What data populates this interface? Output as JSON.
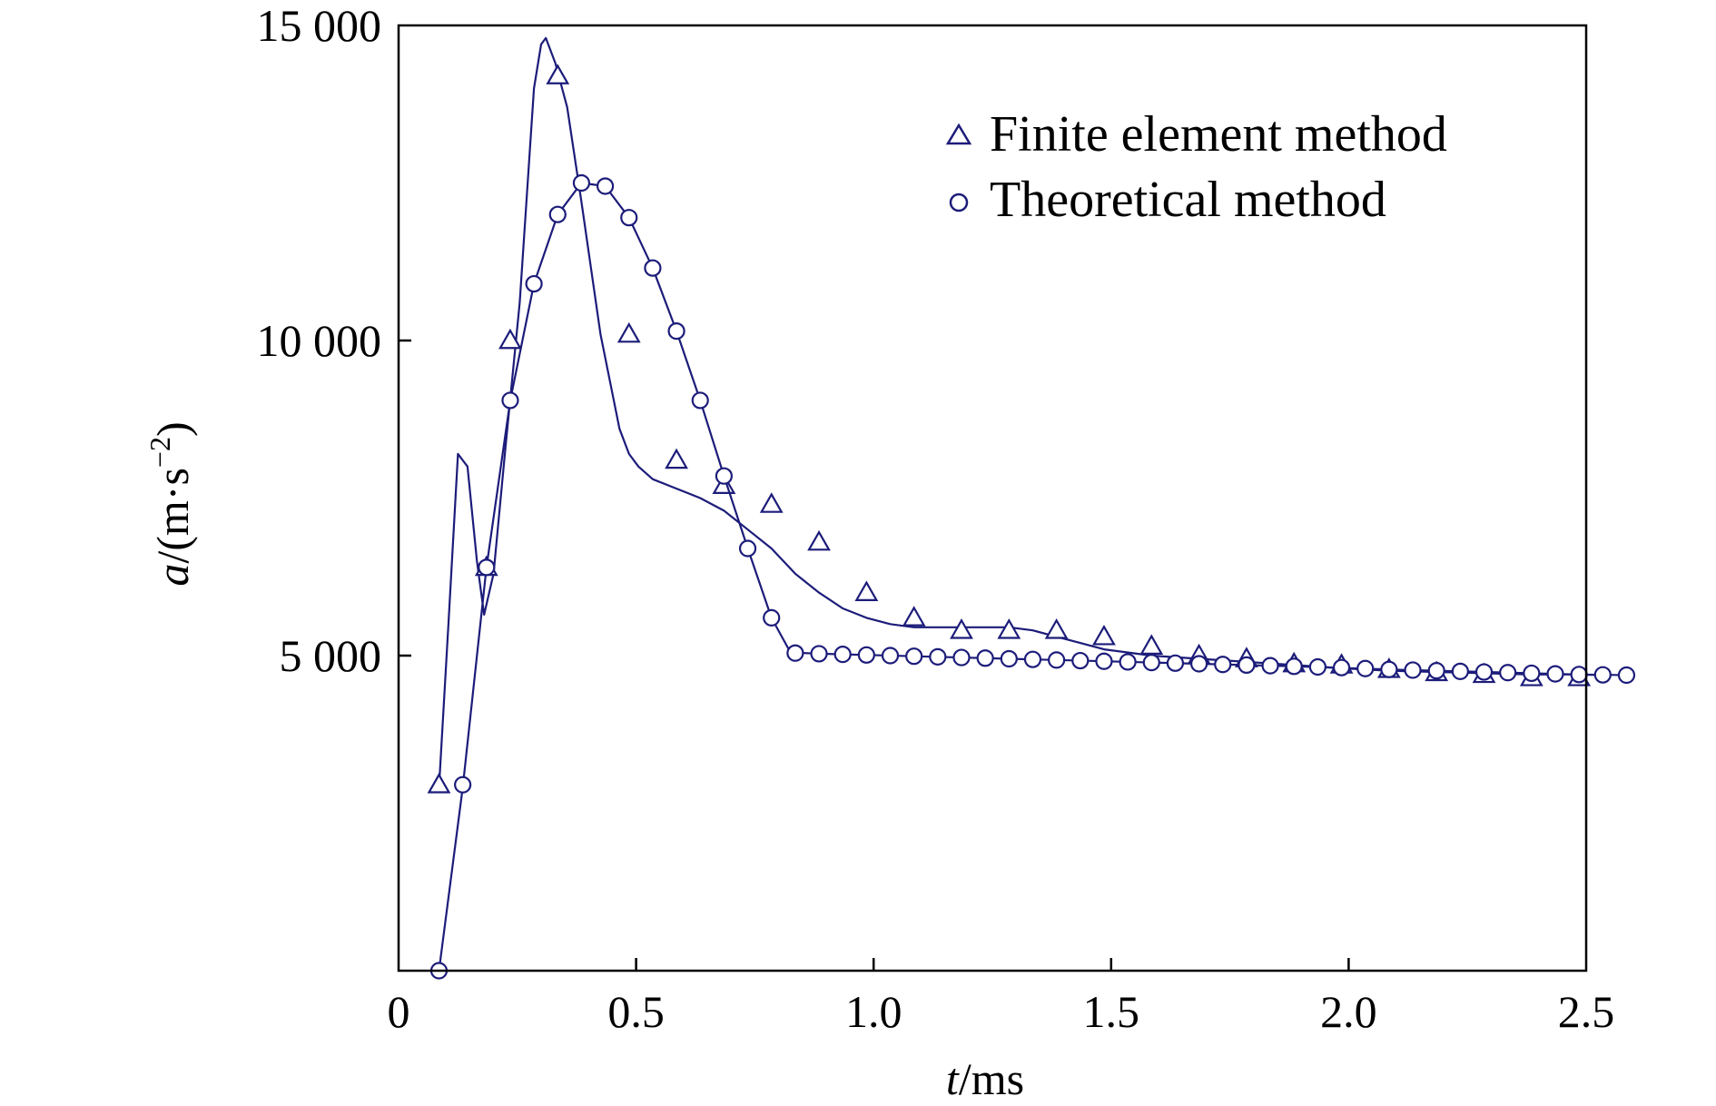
{
  "chart_data": {
    "type": "line",
    "xlabel": {
      "var": "t",
      "unit": "/ms"
    },
    "ylabel": {
      "var": "a",
      "unit_open": "/(m·s",
      "exp": "−2",
      "unit_close": ")"
    },
    "xlim": [
      0,
      2.5
    ],
    "ylim": [
      0,
      15000
    ],
    "x_data_offset": 0.085,
    "xticks": [
      0,
      0.5,
      1.0,
      1.5,
      2.0,
      2.5
    ],
    "xtick_labels": [
      "0",
      "0.5",
      "1.0",
      "1.5",
      "2.0",
      "2.5"
    ],
    "yticks": [
      5000,
      10000,
      15000
    ],
    "ytick_labels": [
      "5 000",
      "10 000",
      "15 000"
    ],
    "grid": false,
    "legend_position": "top-right",
    "line_color": "#1c1c7a",
    "series": [
      {
        "name": "Finite element method",
        "marker": "triangle",
        "line": [
          [
            0.0,
            2900
          ],
          [
            0.02,
            5500
          ],
          [
            0.04,
            8200
          ],
          [
            0.06,
            8000
          ],
          [
            0.08,
            6500
          ],
          [
            0.095,
            5650
          ],
          [
            0.115,
            6300
          ],
          [
            0.14,
            8300
          ],
          [
            0.17,
            10600
          ],
          [
            0.2,
            14000
          ],
          [
            0.215,
            14700
          ],
          [
            0.225,
            14800
          ],
          [
            0.245,
            14400
          ],
          [
            0.27,
            13700
          ],
          [
            0.3,
            12200
          ],
          [
            0.34,
            10100
          ],
          [
            0.38,
            8600
          ],
          [
            0.4,
            8200
          ],
          [
            0.42,
            8000
          ],
          [
            0.45,
            7800
          ],
          [
            0.5,
            7650
          ],
          [
            0.55,
            7500
          ],
          [
            0.6,
            7300
          ],
          [
            0.65,
            7000
          ],
          [
            0.7,
            6700
          ],
          [
            0.75,
            6300
          ],
          [
            0.8,
            6000
          ],
          [
            0.85,
            5750
          ],
          [
            0.9,
            5600
          ],
          [
            0.95,
            5500
          ],
          [
            1.0,
            5450
          ],
          [
            1.1,
            5450
          ],
          [
            1.2,
            5450
          ],
          [
            1.25,
            5400
          ],
          [
            1.3,
            5300
          ],
          [
            1.35,
            5200
          ],
          [
            1.4,
            5100
          ],
          [
            1.5,
            5000
          ],
          [
            1.6,
            4950
          ],
          [
            1.7,
            4900
          ],
          [
            1.8,
            4850
          ],
          [
            1.9,
            4800
          ],
          [
            2.0,
            4760
          ],
          [
            2.1,
            4740
          ],
          [
            2.2,
            4720
          ],
          [
            2.3,
            4700
          ],
          [
            2.4,
            4700
          ],
          [
            2.45,
            4690
          ]
        ],
        "points": [
          [
            0.0,
            2950
          ],
          [
            0.1,
            6400
          ],
          [
            0.15,
            10000
          ],
          [
            0.25,
            14200
          ],
          [
            0.4,
            10100
          ],
          [
            0.5,
            8100
          ],
          [
            0.6,
            7700
          ],
          [
            0.7,
            7400
          ],
          [
            0.8,
            6800
          ],
          [
            0.9,
            6000
          ],
          [
            1.0,
            5600
          ],
          [
            1.1,
            5400
          ],
          [
            1.2,
            5400
          ],
          [
            1.3,
            5400
          ],
          [
            1.4,
            5300
          ],
          [
            1.5,
            5150
          ],
          [
            1.6,
            5000
          ],
          [
            1.7,
            4950
          ],
          [
            1.8,
            4870
          ],
          [
            1.9,
            4850
          ],
          [
            2.0,
            4780
          ],
          [
            2.1,
            4730
          ],
          [
            2.2,
            4700
          ],
          [
            2.3,
            4650
          ],
          [
            2.4,
            4650
          ]
        ]
      },
      {
        "name": "Theoretical method",
        "marker": "circle",
        "line": [
          [
            0.0,
            0
          ],
          [
            0.05,
            2900
          ],
          [
            0.1,
            6400
          ],
          [
            0.15,
            9050
          ],
          [
            0.2,
            10900
          ],
          [
            0.25,
            12000
          ],
          [
            0.3,
            12500
          ],
          [
            0.35,
            12450
          ],
          [
            0.4,
            11950
          ],
          [
            0.45,
            11150
          ],
          [
            0.5,
            10150
          ],
          [
            0.55,
            9050
          ],
          [
            0.6,
            7850
          ],
          [
            0.65,
            6700
          ],
          [
            0.7,
            5600
          ],
          [
            0.74,
            5050
          ],
          [
            0.8,
            5030
          ],
          [
            1.0,
            4990
          ],
          [
            1.2,
            4950
          ],
          [
            1.4,
            4910
          ],
          [
            1.6,
            4870
          ],
          [
            1.8,
            4830
          ],
          [
            2.0,
            4780
          ],
          [
            2.2,
            4740
          ],
          [
            2.4,
            4700
          ],
          [
            2.5,
            4690
          ]
        ],
        "points": [
          [
            0.0,
            0
          ],
          [
            0.05,
            2950
          ],
          [
            0.1,
            6400
          ],
          [
            0.15,
            9050
          ],
          [
            0.2,
            10900
          ],
          [
            0.25,
            12000
          ],
          [
            0.3,
            12500
          ],
          [
            0.35,
            12450
          ],
          [
            0.4,
            11950
          ],
          [
            0.45,
            11150
          ],
          [
            0.5,
            10150
          ],
          [
            0.55,
            9050
          ],
          [
            0.6,
            7850
          ],
          [
            0.65,
            6700
          ],
          [
            0.7,
            5600
          ],
          [
            0.75,
            5040
          ],
          [
            0.8,
            5030
          ],
          [
            0.85,
            5020
          ],
          [
            0.9,
            5010
          ],
          [
            0.95,
            5000
          ],
          [
            1.0,
            4990
          ],
          [
            1.05,
            4980
          ],
          [
            1.1,
            4970
          ],
          [
            1.15,
            4960
          ],
          [
            1.2,
            4950
          ],
          [
            1.25,
            4940
          ],
          [
            1.3,
            4930
          ],
          [
            1.35,
            4920
          ],
          [
            1.4,
            4910
          ],
          [
            1.45,
            4900
          ],
          [
            1.5,
            4890
          ],
          [
            1.55,
            4880
          ],
          [
            1.6,
            4870
          ],
          [
            1.65,
            4860
          ],
          [
            1.7,
            4850
          ],
          [
            1.75,
            4840
          ],
          [
            1.8,
            4830
          ],
          [
            1.85,
            4820
          ],
          [
            1.9,
            4810
          ],
          [
            1.95,
            4795
          ],
          [
            2.0,
            4780
          ],
          [
            2.05,
            4770
          ],
          [
            2.1,
            4760
          ],
          [
            2.15,
            4750
          ],
          [
            2.2,
            4740
          ],
          [
            2.25,
            4730
          ],
          [
            2.3,
            4720
          ],
          [
            2.35,
            4710
          ],
          [
            2.4,
            4700
          ],
          [
            2.45,
            4695
          ],
          [
            2.5,
            4690
          ]
        ]
      }
    ]
  }
}
